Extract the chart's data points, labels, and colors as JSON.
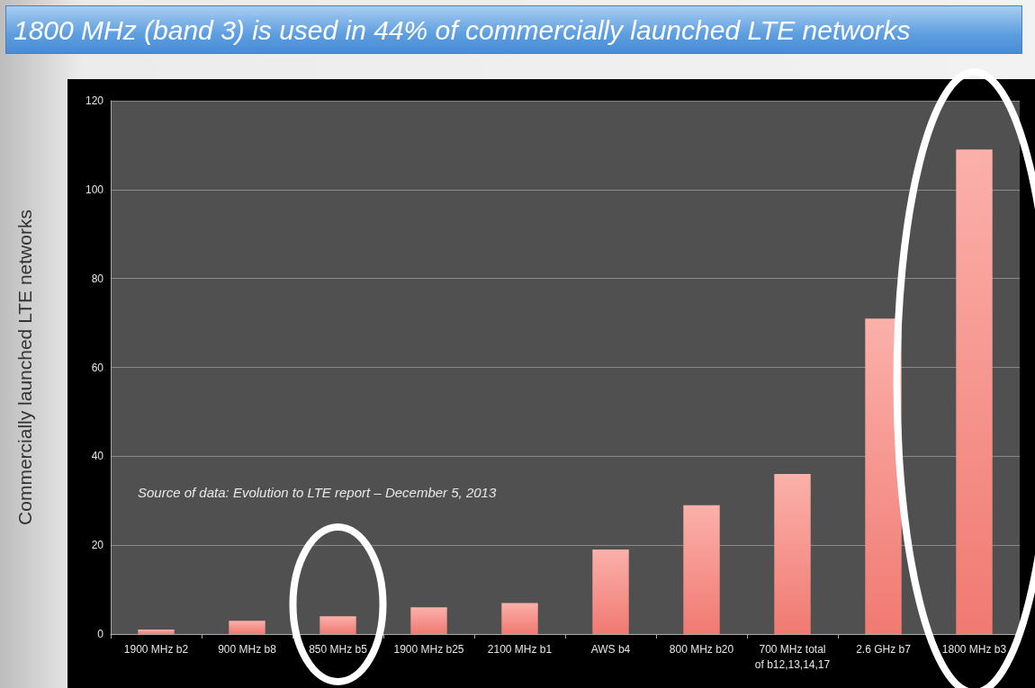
{
  "chart_data": {
    "type": "bar",
    "title": "1800 MHz (band 3) is used in 44% of commercially launched LTE networks",
    "ylabel": "Commercially launched LTE networks",
    "categories": [
      "1900 MHz b2",
      "900 MHz b8",
      "850 MHz b5",
      "1900 MHz b25",
      "2100 MHz b1",
      "AWS b4",
      "800 MHz b20",
      "700 MHz total\nof b12,13,14,17",
      "2.6 GHz b7",
      "1800 MHz b3"
    ],
    "values": [
      1,
      3,
      4,
      6,
      7,
      19,
      29,
      36,
      71,
      109
    ],
    "color": "#f07a72",
    "ylim": [
      0,
      120
    ],
    "yticks": [
      0,
      20,
      40,
      60,
      80,
      100,
      120
    ],
    "grid": "y",
    "annotations": [
      "Source of data: Evolution to LTE report – December 5, 2013"
    ]
  }
}
